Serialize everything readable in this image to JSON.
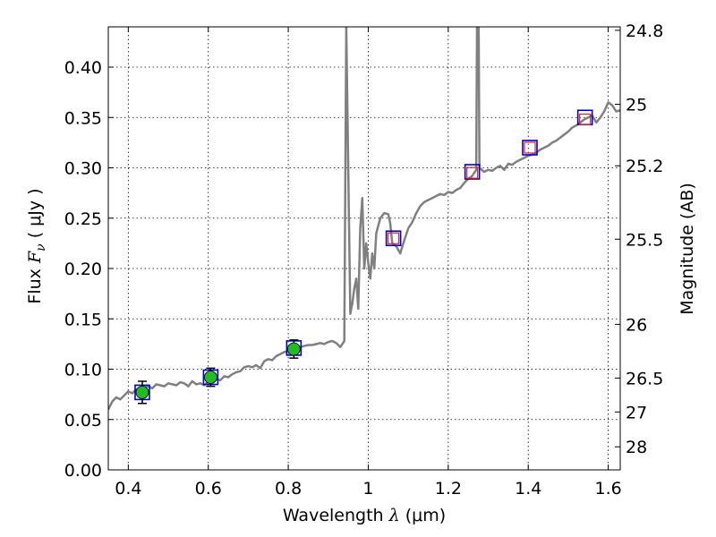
{
  "chart_data": {
    "type": "scatter",
    "xlabel": {
      "prefix": "Wavelength  ",
      "symbol": "λ",
      "unit": " (μm)"
    },
    "ylabel": {
      "prefix": "Flux  ",
      "symbol": "F",
      "subscript": "ν",
      "unit": "  ( μJy )"
    },
    "y2label": "Magnitude (AB)",
    "xlim": [
      0.35,
      1.63
    ],
    "ylim": [
      0.0,
      0.44
    ],
    "grid": true,
    "x_ticks": [
      {
        "value": 0.4,
        "label": "0.4"
      },
      {
        "value": 0.6,
        "label": "0.6"
      },
      {
        "value": 0.8,
        "label": "0.8"
      },
      {
        "value": 1.0,
        "label": "1"
      },
      {
        "value": 1.2,
        "label": "1.2"
      },
      {
        "value": 1.4,
        "label": "1.4"
      },
      {
        "value": 1.6,
        "label": "1.6"
      }
    ],
    "y_ticks": [
      {
        "value": 0.0,
        "label": "0.00"
      },
      {
        "value": 0.05,
        "label": "0.05"
      },
      {
        "value": 0.1,
        "label": "0.10"
      },
      {
        "value": 0.15,
        "label": "0.15"
      },
      {
        "value": 0.2,
        "label": "0.20"
      },
      {
        "value": 0.25,
        "label": "0.25"
      },
      {
        "value": 0.3,
        "label": "0.30"
      },
      {
        "value": 0.35,
        "label": "0.35"
      },
      {
        "value": 0.4,
        "label": "0.40"
      }
    ],
    "y2_ticks": [
      {
        "value": 24.8,
        "label": "24.8"
      },
      {
        "value": 25.0,
        "label": "25"
      },
      {
        "value": 25.2,
        "label": "25.2"
      },
      {
        "value": 25.5,
        "label": "25.5"
      },
      {
        "value": 26.0,
        "label": "26"
      },
      {
        "value": 26.5,
        "label": "26.5"
      },
      {
        "value": 27.0,
        "label": "27"
      },
      {
        "value": 28.0,
        "label": "28"
      }
    ],
    "colors": {
      "model": "#808080",
      "observed_fill": "#22bb22",
      "observed_edge": "#000000",
      "model_box": "#0000dd",
      "upper_box": "#dd2222"
    },
    "model_spectrum": [
      [
        0.35,
        0.06
      ],
      [
        0.36,
        0.068
      ],
      [
        0.37,
        0.072
      ],
      [
        0.38,
        0.07
      ],
      [
        0.39,
        0.074
      ],
      [
        0.4,
        0.078
      ],
      [
        0.41,
        0.076
      ],
      [
        0.42,
        0.08
      ],
      [
        0.43,
        0.079
      ],
      [
        0.44,
        0.082
      ],
      [
        0.45,
        0.083
      ],
      [
        0.46,
        0.081
      ],
      [
        0.47,
        0.085
      ],
      [
        0.48,
        0.084
      ],
      [
        0.49,
        0.083
      ],
      [
        0.5,
        0.086
      ],
      [
        0.51,
        0.085
      ],
      [
        0.52,
        0.084
      ],
      [
        0.53,
        0.087
      ],
      [
        0.54,
        0.086
      ],
      [
        0.55,
        0.083
      ],
      [
        0.56,
        0.088
      ],
      [
        0.57,
        0.085
      ],
      [
        0.58,
        0.086
      ],
      [
        0.59,
        0.084
      ],
      [
        0.6,
        0.088
      ],
      [
        0.61,
        0.087
      ],
      [
        0.62,
        0.09
      ],
      [
        0.63,
        0.089
      ],
      [
        0.64,
        0.093
      ],
      [
        0.65,
        0.092
      ],
      [
        0.66,
        0.095
      ],
      [
        0.67,
        0.097
      ],
      [
        0.68,
        0.098
      ],
      [
        0.69,
        0.102
      ],
      [
        0.7,
        0.103
      ],
      [
        0.71,
        0.102
      ],
      [
        0.72,
        0.104
      ],
      [
        0.73,
        0.101
      ],
      [
        0.74,
        0.108
      ],
      [
        0.75,
        0.11
      ],
      [
        0.76,
        0.109
      ],
      [
        0.77,
        0.113
      ],
      [
        0.78,
        0.115
      ],
      [
        0.79,
        0.117
      ],
      [
        0.8,
        0.118
      ],
      [
        0.81,
        0.119
      ],
      [
        0.82,
        0.12
      ],
      [
        0.83,
        0.122
      ],
      [
        0.84,
        0.123
      ],
      [
        0.85,
        0.124
      ],
      [
        0.86,
        0.124
      ],
      [
        0.87,
        0.125
      ],
      [
        0.88,
        0.126
      ],
      [
        0.89,
        0.125
      ],
      [
        0.9,
        0.127
      ],
      [
        0.91,
        0.128
      ],
      [
        0.92,
        0.126
      ],
      [
        0.93,
        0.122
      ],
      [
        0.94,
        0.128
      ],
      [
        0.945,
        0.44
      ],
      [
        0.95,
        0.3
      ],
      [
        0.955,
        0.155
      ],
      [
        0.96,
        0.165
      ],
      [
        0.965,
        0.18
      ],
      [
        0.97,
        0.19
      ],
      [
        0.975,
        0.16
      ],
      [
        0.98,
        0.24
      ],
      [
        0.985,
        0.27
      ],
      [
        0.99,
        0.2
      ],
      [
        0.995,
        0.225
      ],
      [
        1.0,
        0.205
      ],
      [
        1.005,
        0.19
      ],
      [
        1.01,
        0.215
      ],
      [
        1.015,
        0.2
      ],
      [
        1.02,
        0.235
      ],
      [
        1.03,
        0.25
      ],
      [
        1.04,
        0.255
      ],
      [
        1.05,
        0.254
      ],
      [
        1.055,
        0.245
      ],
      [
        1.06,
        0.225
      ],
      [
        1.07,
        0.222
      ],
      [
        1.08,
        0.215
      ],
      [
        1.09,
        0.228
      ],
      [
        1.1,
        0.24
      ],
      [
        1.11,
        0.246
      ],
      [
        1.12,
        0.255
      ],
      [
        1.13,
        0.262
      ],
      [
        1.14,
        0.266
      ],
      [
        1.15,
        0.268
      ],
      [
        1.16,
        0.27
      ],
      [
        1.17,
        0.272
      ],
      [
        1.18,
        0.274
      ],
      [
        1.19,
        0.273
      ],
      [
        1.2,
        0.276
      ],
      [
        1.21,
        0.275
      ],
      [
        1.22,
        0.278
      ],
      [
        1.23,
        0.28
      ],
      [
        1.24,
        0.285
      ],
      [
        1.25,
        0.289
      ],
      [
        1.26,
        0.292
      ],
      [
        1.265,
        0.295
      ],
      [
        1.27,
        0.298
      ],
      [
        1.272,
        0.44
      ],
      [
        1.276,
        0.44
      ],
      [
        1.278,
        0.3
      ],
      [
        1.29,
        0.296
      ],
      [
        1.3,
        0.298
      ],
      [
        1.31,
        0.297
      ],
      [
        1.32,
        0.3
      ],
      [
        1.33,
        0.302
      ],
      [
        1.34,
        0.298
      ],
      [
        1.35,
        0.304
      ],
      [
        1.36,
        0.303
      ],
      [
        1.37,
        0.306
      ],
      [
        1.38,
        0.308
      ],
      [
        1.39,
        0.31
      ],
      [
        1.4,
        0.312
      ],
      [
        1.41,
        0.313
      ],
      [
        1.42,
        0.315
      ],
      [
        1.43,
        0.318
      ],
      [
        1.44,
        0.32
      ],
      [
        1.45,
        0.322
      ],
      [
        1.46,
        0.325
      ],
      [
        1.47,
        0.327
      ],
      [
        1.48,
        0.33
      ],
      [
        1.49,
        0.333
      ],
      [
        1.5,
        0.336
      ],
      [
        1.51,
        0.34
      ],
      [
        1.52,
        0.342
      ],
      [
        1.53,
        0.345
      ],
      [
        1.54,
        0.348
      ],
      [
        1.55,
        0.35
      ],
      [
        1.56,
        0.352
      ],
      [
        1.57,
        0.345
      ],
      [
        1.58,
        0.35
      ],
      [
        1.59,
        0.356
      ],
      [
        1.6,
        0.365
      ],
      [
        1.61,
        0.362
      ],
      [
        1.62,
        0.356
      ],
      [
        1.63,
        0.357
      ]
    ],
    "observed_points": [
      {
        "x": 0.435,
        "y": 0.077,
        "err": 0.011
      },
      {
        "x": 0.606,
        "y": 0.092,
        "err": 0.009
      },
      {
        "x": 0.814,
        "y": 0.12,
        "err": 0.009
      }
    ],
    "model_boxes": [
      {
        "x": 0.435,
        "y": 0.077
      },
      {
        "x": 0.606,
        "y": 0.092
      },
      {
        "x": 0.814,
        "y": 0.121
      },
      {
        "x": 1.063,
        "y": 0.23
      },
      {
        "x": 1.26,
        "y": 0.296
      },
      {
        "x": 1.404,
        "y": 0.32
      },
      {
        "x": 1.542,
        "y": 0.35
      }
    ],
    "upper_limit_boxes": [
      {
        "x": 1.063,
        "y": 0.23
      },
      {
        "x": 1.26,
        "y": 0.295
      },
      {
        "x": 1.404,
        "y": 0.32
      },
      {
        "x": 1.542,
        "y": 0.348
      }
    ]
  }
}
